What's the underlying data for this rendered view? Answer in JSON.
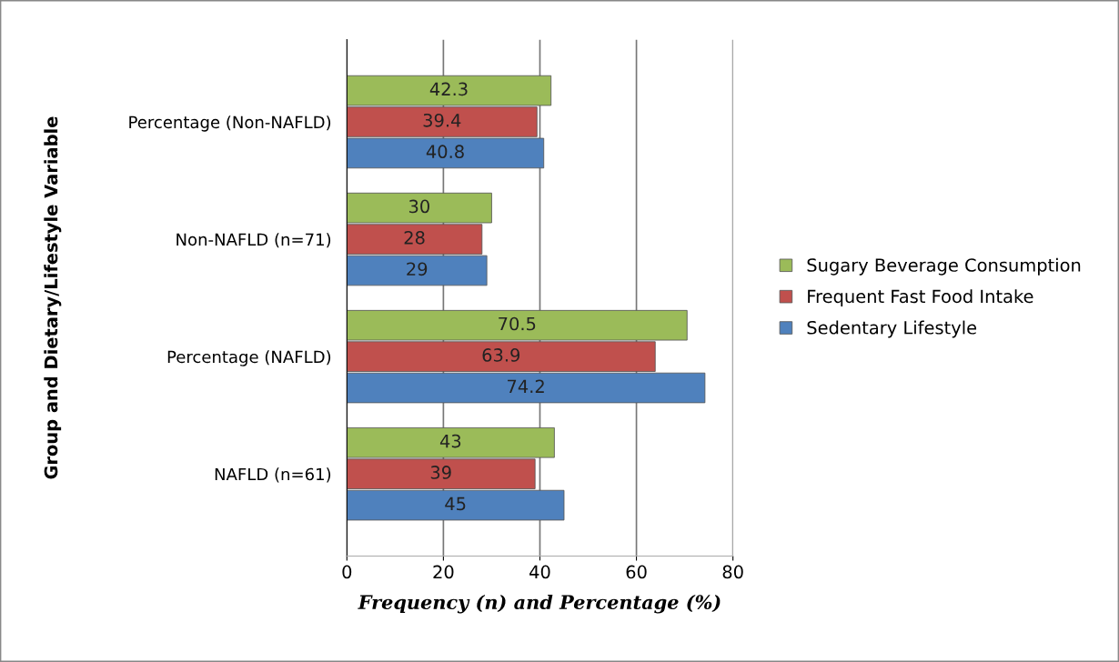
{
  "chart_data": {
    "type": "bar",
    "orientation": "horizontal",
    "categories": [
      "Percentage (Non-NAFLD)",
      "Non-NAFLD (n=71)",
      "Percentage (NAFLD)",
      "NAFLD (n=61)"
    ],
    "series": [
      {
        "name": "Sedentary Lifestyle",
        "color": "#4f81bd",
        "values": [
          40.8,
          29,
          74.2,
          45
        ]
      },
      {
        "name": "Frequent Fast Food Intake",
        "color": "#c0504d",
        "values": [
          39.4,
          28,
          63.9,
          39
        ]
      },
      {
        "name": "Sugary Beverage Consumption",
        "color": "#9bbb59",
        "values": [
          42.3,
          30,
          70.5,
          43
        ]
      }
    ],
    "xlabel": "Frequency (n) and Percentage (%)",
    "ylabel": "Group and Dietary/Lifestyle Variable",
    "xlim": [
      0,
      80
    ],
    "xticks": [
      0,
      20,
      40,
      60,
      80
    ],
    "grid": "x",
    "legend": "right",
    "data_labels": true
  }
}
